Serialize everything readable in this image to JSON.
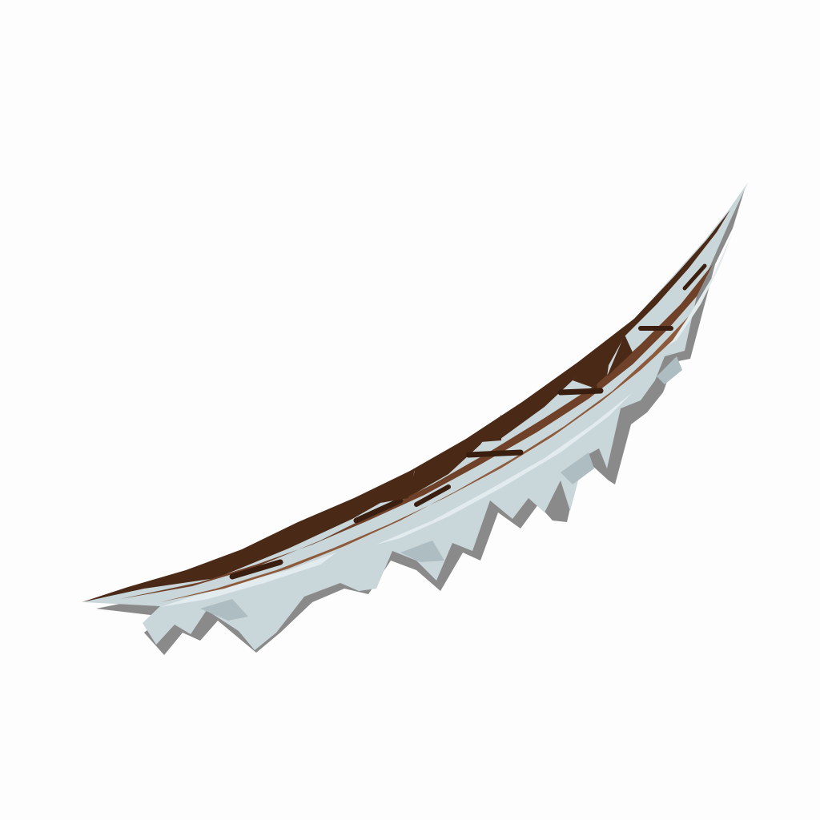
{
  "scene": {
    "subject": "snow-covered-wooden-log-platform",
    "icon": "snowy-log-icon",
    "colors": {
      "background": "#fdfdfd",
      "wood_dark": "#4a2a17",
      "wood_mid": "#6e4128",
      "wood_light": "#8d5a3b",
      "wood_grain": "#3a1f10",
      "snow": "#c9d6da",
      "snow_highlight": "#e2ebee",
      "snow_shade": "#aebdc2",
      "shadow": "#8a8a8a"
    }
  }
}
